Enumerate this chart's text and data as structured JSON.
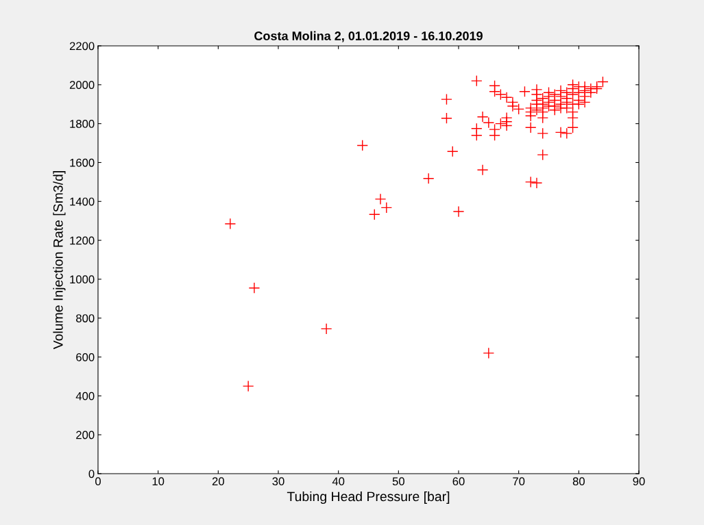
{
  "chart_data": {
    "type": "scatter",
    "title": "Costa Molina 2, 01.01.2019 - 16.10.2019",
    "xlabel": "Tubing Head Pressure [bar]",
    "ylabel": "Volume Injection Rate [Sm3/d]",
    "x": [
      22,
      25,
      26,
      38,
      44,
      46,
      47,
      48,
      55,
      58,
      58,
      59,
      60,
      63,
      63,
      63,
      64,
      64,
      65,
      65,
      66,
      66,
      66,
      66,
      67,
      67,
      68,
      68,
      68,
      68,
      69,
      69,
      70,
      71,
      72,
      72,
      72,
      72,
      73,
      73,
      73,
      74,
      74,
      74,
      77,
      78,
      79,
      79,
      84,
      83,
      72,
      73,
      73,
      74,
      74,
      74,
      75,
      75,
      75,
      76,
      76,
      76,
      77,
      77,
      77,
      78,
      78,
      78,
      79,
      79,
      79,
      79,
      80,
      80,
      80,
      81,
      81,
      81,
      82,
      82,
      83,
      80,
      81,
      79,
      78,
      76,
      75,
      73,
      74,
      77
    ],
    "series": [
      {
        "color": "#ff0000",
        "values": [
          1285,
          450,
          955,
          745,
          1688,
          1333,
          1412,
          1368,
          1518,
          1925,
          1828,
          1657,
          1348,
          2020,
          1775,
          1740,
          1835,
          1562,
          1805,
          620,
          1995,
          1965,
          1770,
          1740,
          1950,
          1800,
          1935,
          1830,
          1810,
          1790,
          1910,
          1890,
          1875,
          1965,
          1500,
          1780,
          1840,
          1860,
          1495,
          1975,
          1950,
          1640,
          1750,
          1830,
          1755,
          1750,
          1780,
          1830,
          2015,
          1990,
          1880,
          1900,
          1920,
          1900,
          1930,
          1880,
          1910,
          1940,
          1960,
          1920,
          1950,
          1890,
          1900,
          1940,
          1970,
          1910,
          1930,
          1960,
          1900,
          1950,
          1980,
          2000,
          1920,
          1960,
          1990,
          1940,
          1970,
          1990,
          1960,
          1980,
          1980,
          1900,
          1910,
          1860,
          1880,
          1870,
          1890,
          1870,
          1860,
          1880
        ]
      }
    ],
    "marker": "cross",
    "xlim": [
      0,
      90
    ],
    "xticks": [
      0,
      10,
      20,
      30,
      40,
      50,
      60,
      70,
      80,
      90
    ],
    "ylim": [
      0,
      2200
    ],
    "yticks": [
      0,
      200,
      400,
      600,
      800,
      1000,
      1200,
      1400,
      1600,
      1800,
      2000,
      2200
    ],
    "grid": false,
    "legend": false
  }
}
